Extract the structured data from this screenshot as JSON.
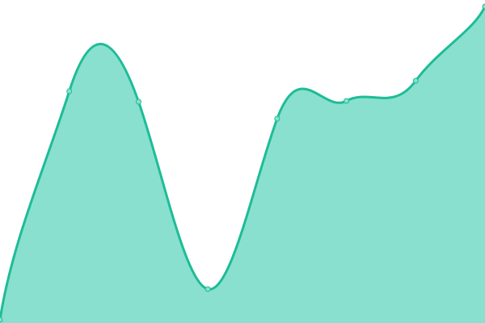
{
  "chart_data": {
    "type": "area",
    "title": "",
    "xlabel": "",
    "ylabel": "",
    "x": [
      0,
      1,
      2,
      3,
      4,
      5,
      6,
      7
    ],
    "series": [
      {
        "values": [
          4,
          287,
          274,
          42,
          253,
          275,
          300,
          392
        ]
      }
    ],
    "xlim": [
      0,
      7
    ],
    "ylim": [
      0,
      400
    ],
    "grid": false,
    "axes_visible": false,
    "curve": "smooth",
    "colors": {
      "line": "#1ebc96",
      "fill": "#89e0cf",
      "marker": "#89e0cf"
    }
  }
}
